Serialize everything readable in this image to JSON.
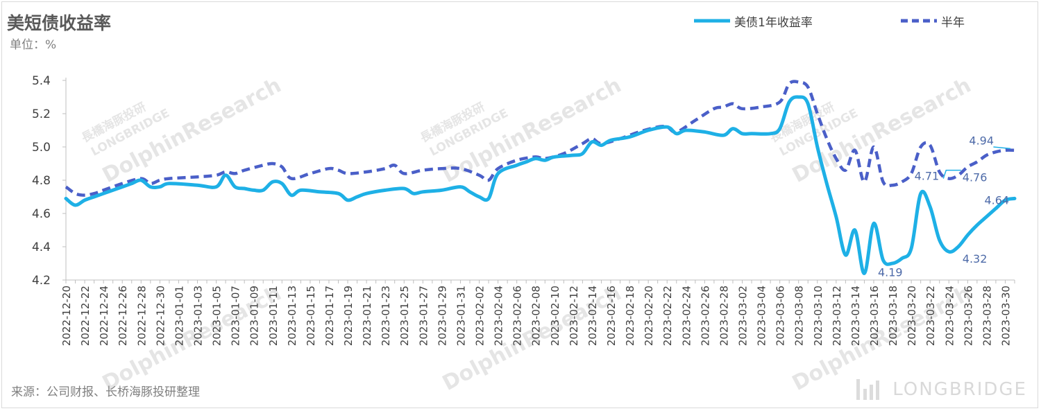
{
  "title": "美短债收益率",
  "unit": "单位：%",
  "source": "来源：公司财报、长桥海豚投研整理",
  "watermark": {
    "brand": "DolphinResearch",
    "cn": "長橋海豚投研",
    "en": "LONGBRIDGE",
    "corner": "LONGBRIDGE"
  },
  "colors": {
    "series1": "#1eb0e6",
    "series2": "#4a5fc8",
    "axis": "#bfbfbf",
    "text": "#404040",
    "annot": "#4d6aa8"
  },
  "chart_data": {
    "type": "line",
    "title": "美短债收益率",
    "ylabel": "单位：%",
    "ylim": [
      4.2,
      5.4
    ],
    "yticks": [
      "4.2",
      "4.4",
      "4.6",
      "4.8",
      "5.0",
      "5.2",
      "5.4"
    ],
    "grid": false,
    "legend": "top-right",
    "x_tick_labels": [
      "2022-12-20",
      "2022-12-22",
      "2022-12-24",
      "2022-12-26",
      "2022-12-28",
      "2022-12-30",
      "2023-01-01",
      "2023-01-03",
      "2023-01-05",
      "2023-01-07",
      "2023-01-09",
      "2023-01-11",
      "2023-01-13",
      "2023-01-15",
      "2023-01-17",
      "2023-01-19",
      "2023-01-21",
      "2023-01-23",
      "2023-01-25",
      "2023-01-27",
      "2023-01-29",
      "2023-01-31",
      "2023-02-02",
      "2023-02-04",
      "2023-02-06",
      "2023-02-08",
      "2023-02-10",
      "2023-02-12",
      "2023-02-14",
      "2023-02-16",
      "2023-02-18",
      "2023-02-20",
      "2023-02-22",
      "2023-02-24",
      "2023-02-26",
      "2023-02-28",
      "2023-03-02",
      "2023-03-04",
      "2023-03-06",
      "2023-03-08",
      "2023-03-10",
      "2023-03-12",
      "2023-03-14",
      "2023-03-16",
      "2023-03-18",
      "2023-03-20",
      "2023-03-22",
      "2023-03-24",
      "2023-03-26",
      "2023-03-28",
      "2023-03-30"
    ],
    "x_start": "2022-12-20",
    "x_end": "2023-03-31",
    "series": [
      {
        "name": "美债1年收益率",
        "style": "solid",
        "points": [
          [
            "2022-12-20",
            4.69
          ],
          [
            "2022-12-21",
            4.65
          ],
          [
            "2022-12-22",
            4.68
          ],
          [
            "2022-12-23",
            4.7
          ],
          [
            "2022-12-24",
            4.72
          ],
          [
            "2022-12-25",
            4.74
          ],
          [
            "2022-12-26",
            4.76
          ],
          [
            "2022-12-27",
            4.78
          ],
          [
            "2022-12-28",
            4.8
          ],
          [
            "2022-12-29",
            4.76
          ],
          [
            "2022-12-30",
            4.76
          ],
          [
            "2022-12-31",
            4.78
          ],
          [
            "2023-01-03",
            4.77
          ],
          [
            "2023-01-05",
            4.76
          ],
          [
            "2023-01-06",
            4.83
          ],
          [
            "2023-01-07",
            4.76
          ],
          [
            "2023-01-08",
            4.75
          ],
          [
            "2023-01-09",
            4.74
          ],
          [
            "2023-01-10",
            4.74
          ],
          [
            "2023-01-11",
            4.79
          ],
          [
            "2023-01-12",
            4.78
          ],
          [
            "2023-01-13",
            4.71
          ],
          [
            "2023-01-14",
            4.74
          ],
          [
            "2023-01-16",
            4.73
          ],
          [
            "2023-01-18",
            4.72
          ],
          [
            "2023-01-19",
            4.68
          ],
          [
            "2023-01-20",
            4.7
          ],
          [
            "2023-01-21",
            4.72
          ],
          [
            "2023-01-23",
            4.74
          ],
          [
            "2023-01-25",
            4.75
          ],
          [
            "2023-01-26",
            4.72
          ],
          [
            "2023-01-27",
            4.73
          ],
          [
            "2023-01-29",
            4.74
          ],
          [
            "2023-01-31",
            4.76
          ],
          [
            "2023-02-01",
            4.73
          ],
          [
            "2023-02-02",
            4.7
          ],
          [
            "2023-02-03",
            4.69
          ],
          [
            "2023-02-04",
            4.84
          ],
          [
            "2023-02-06",
            4.89
          ],
          [
            "2023-02-07",
            4.91
          ],
          [
            "2023-02-08",
            4.93
          ],
          [
            "2023-02-09",
            4.92
          ],
          [
            "2023-02-10",
            4.94
          ],
          [
            "2023-02-12",
            4.95
          ],
          [
            "2023-02-13",
            4.96
          ],
          [
            "2023-02-14",
            5.03
          ],
          [
            "2023-02-15",
            5.01
          ],
          [
            "2023-02-16",
            5.04
          ],
          [
            "2023-02-18",
            5.06
          ],
          [
            "2023-02-20",
            5.1
          ],
          [
            "2023-02-22",
            5.12
          ],
          [
            "2023-02-23",
            5.08
          ],
          [
            "2023-02-24",
            5.1
          ],
          [
            "2023-02-26",
            5.09
          ],
          [
            "2023-02-28",
            5.07
          ],
          [
            "2023-03-01",
            5.11
          ],
          [
            "2023-03-02",
            5.08
          ],
          [
            "2023-03-03",
            5.08
          ],
          [
            "2023-03-05",
            5.08
          ],
          [
            "2023-03-06",
            5.11
          ],
          [
            "2023-03-07",
            5.27
          ],
          [
            "2023-03-08",
            5.3
          ],
          [
            "2023-03-09",
            5.26
          ],
          [
            "2023-03-10",
            5.0
          ],
          [
            "2023-03-11",
            4.78
          ],
          [
            "2023-03-12",
            4.58
          ],
          [
            "2023-03-13",
            4.35
          ],
          [
            "2023-03-14",
            4.5
          ],
          [
            "2023-03-15",
            4.24
          ],
          [
            "2023-03-16",
            4.54
          ],
          [
            "2023-03-17",
            4.32
          ],
          [
            "2023-03-18",
            4.3
          ],
          [
            "2023-03-19",
            4.33
          ],
          [
            "2023-03-20",
            4.39
          ],
          [
            "2023-03-21",
            4.72
          ],
          [
            "2023-03-22",
            4.64
          ],
          [
            "2023-03-23",
            4.44
          ],
          [
            "2023-03-24",
            4.37
          ],
          [
            "2023-03-25",
            4.4
          ],
          [
            "2023-03-26",
            4.47
          ],
          [
            "2023-03-27",
            4.53
          ],
          [
            "2023-03-28",
            4.58
          ],
          [
            "2023-03-29",
            4.63
          ],
          [
            "2023-03-30",
            4.68
          ],
          [
            "2023-03-31",
            4.69
          ]
        ]
      },
      {
        "name": "半年",
        "style": "dashed",
        "points": [
          [
            "2022-12-20",
            4.76
          ],
          [
            "2022-12-21",
            4.72
          ],
          [
            "2022-12-22",
            4.71
          ],
          [
            "2022-12-23",
            4.72
          ],
          [
            "2022-12-24",
            4.74
          ],
          [
            "2022-12-26",
            4.78
          ],
          [
            "2022-12-28",
            4.81
          ],
          [
            "2022-12-29",
            4.78
          ],
          [
            "2022-12-30",
            4.8
          ],
          [
            "2022-12-31",
            4.81
          ],
          [
            "2023-01-03",
            4.82
          ],
          [
            "2023-01-05",
            4.83
          ],
          [
            "2023-01-06",
            4.85
          ],
          [
            "2023-01-07",
            4.84
          ],
          [
            "2023-01-08",
            4.86
          ],
          [
            "2023-01-10",
            4.89
          ],
          [
            "2023-01-11",
            4.9
          ],
          [
            "2023-01-12",
            4.88
          ],
          [
            "2023-01-13",
            4.81
          ],
          [
            "2023-01-15",
            4.84
          ],
          [
            "2023-01-17",
            4.87
          ],
          [
            "2023-01-18",
            4.86
          ],
          [
            "2023-01-19",
            4.84
          ],
          [
            "2023-01-21",
            4.85
          ],
          [
            "2023-01-23",
            4.87
          ],
          [
            "2023-01-24",
            4.89
          ],
          [
            "2023-01-25",
            4.84
          ],
          [
            "2023-01-27",
            4.86
          ],
          [
            "2023-01-29",
            4.87
          ],
          [
            "2023-01-31",
            4.87
          ],
          [
            "2023-02-02",
            4.83
          ],
          [
            "2023-02-03",
            4.8
          ],
          [
            "2023-02-04",
            4.87
          ],
          [
            "2023-02-06",
            4.92
          ],
          [
            "2023-02-08",
            4.94
          ],
          [
            "2023-02-09",
            4.93
          ],
          [
            "2023-02-11",
            4.96
          ],
          [
            "2023-02-13",
            5.02
          ],
          [
            "2023-02-14",
            5.05
          ],
          [
            "2023-02-15",
            5.02
          ],
          [
            "2023-02-17",
            5.05
          ],
          [
            "2023-02-19",
            5.09
          ],
          [
            "2023-02-21",
            5.12
          ],
          [
            "2023-02-22",
            5.12
          ],
          [
            "2023-02-23",
            5.09
          ],
          [
            "2023-02-25",
            5.16
          ],
          [
            "2023-02-27",
            5.23
          ],
          [
            "2023-02-28",
            5.24
          ],
          [
            "2023-03-01",
            5.26
          ],
          [
            "2023-03-02",
            5.23
          ],
          [
            "2023-03-04",
            5.24
          ],
          [
            "2023-03-06",
            5.27
          ],
          [
            "2023-03-07",
            5.38
          ],
          [
            "2023-03-08",
            5.39
          ],
          [
            "2023-03-09",
            5.36
          ],
          [
            "2023-03-10",
            5.2
          ],
          [
            "2023-03-11",
            5.05
          ],
          [
            "2023-03-12",
            4.93
          ],
          [
            "2023-03-13",
            4.86
          ],
          [
            "2023-03-14",
            4.98
          ],
          [
            "2023-03-15",
            4.79
          ],
          [
            "2023-03-16",
            5.0
          ],
          [
            "2023-03-17",
            4.79
          ],
          [
            "2023-03-18",
            4.77
          ],
          [
            "2023-03-19",
            4.79
          ],
          [
            "2023-03-20",
            4.84
          ],
          [
            "2023-03-21",
            5.0
          ],
          [
            "2023-03-22",
            5.01
          ],
          [
            "2023-03-23",
            4.85
          ],
          [
            "2023-03-24",
            4.81
          ],
          [
            "2023-03-25",
            4.83
          ],
          [
            "2023-03-26",
            4.88
          ],
          [
            "2023-03-27",
            4.91
          ],
          [
            "2023-03-28",
            4.95
          ],
          [
            "2023-03-29",
            4.97
          ],
          [
            "2023-03-30",
            4.98
          ],
          [
            "2023-03-31",
            4.98
          ]
        ]
      }
    ],
    "annotations": [
      {
        "text": "4.19",
        "x": "2023-03-16",
        "y": 4.19
      },
      {
        "text": "4.71",
        "x": "2023-03-19",
        "y": 4.71
      },
      {
        "text": "4.32",
        "x": "2023-03-25",
        "y": 4.32
      },
      {
        "text": "4.64",
        "x": "2023-03-30",
        "y": 4.64
      },
      {
        "text": "4.76",
        "x": "2023-03-25",
        "y": 4.76
      },
      {
        "text": "4.94",
        "x": "2023-03-28",
        "y": 4.94
      }
    ]
  }
}
